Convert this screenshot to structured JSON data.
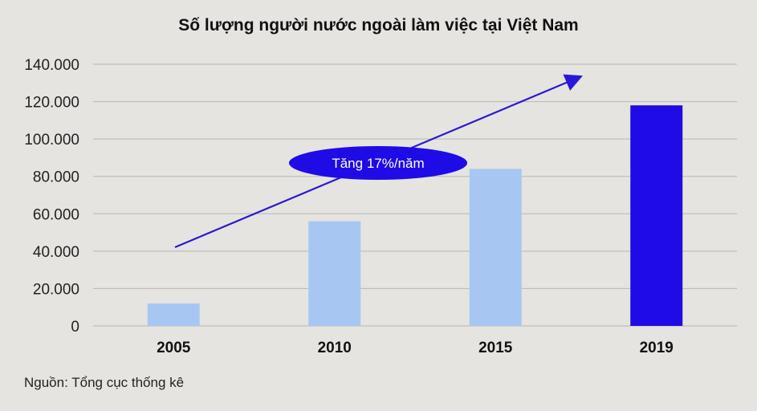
{
  "chart_data": {
    "type": "bar",
    "title": "Số lượng người nước ngoài làm việc tại Việt Nam",
    "categories": [
      "2005",
      "2010",
      "2015",
      "2019"
    ],
    "values": [
      12000,
      56000,
      84000,
      118000
    ],
    "ylim": [
      0,
      140000
    ],
    "yticks": [
      "0",
      "20.000",
      "40.000",
      "60.000",
      "80.000",
      "100.000",
      "120.000",
      "140.000"
    ],
    "grid": true,
    "annotation": "Tăng 17%/năm",
    "colors": {
      "bar": "#a7c7f2",
      "highlight_bar": "#1f0be6",
      "arrow": "#2a18d9",
      "annotation_bg": "#1f0be6",
      "grid": "#b8b6b2"
    }
  },
  "source": "Nguồn: Tổng cục thống kê"
}
